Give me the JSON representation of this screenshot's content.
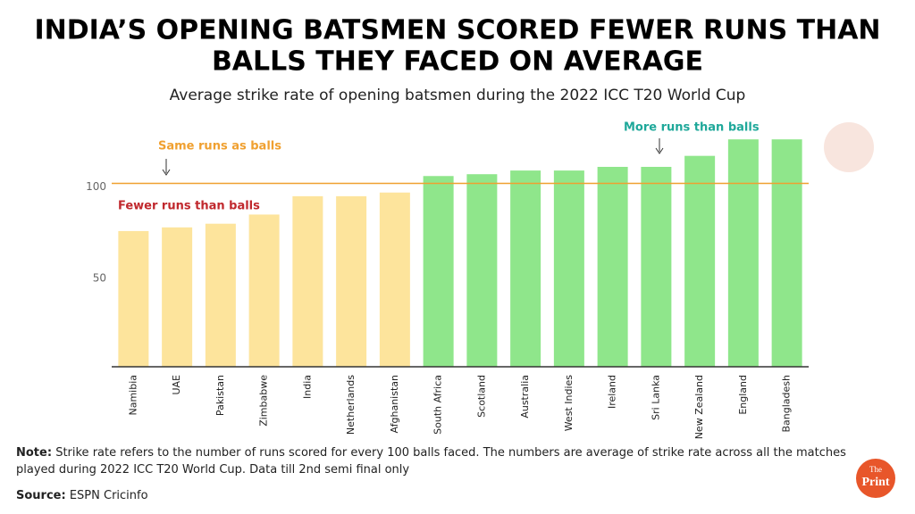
{
  "chart_data": {
    "type": "bar",
    "title": [
      "INDIA’S OPENING BATSMEN SCORED FEWER RUNS THAN",
      "BALLS THEY FACED ON AVERAGE"
    ],
    "subtitle": "Average strike rate of opening batsmen during the 2022 ICC T20 World Cup",
    "categories": [
      "Namibia",
      "UAE",
      "Pakistan",
      "Zimbabwe",
      "India",
      "Netherlands",
      "Afghanistan",
      "South Africa",
      "Scotland",
      "Australia",
      "West Indies",
      "Ireland",
      "Sri Lanka",
      "New Zealand",
      "England",
      "Bangladesh"
    ],
    "values": [
      74,
      76,
      78,
      83,
      93,
      93,
      95,
      104,
      105,
      107,
      107,
      109,
      109,
      115,
      124,
      124
    ],
    "colors": [
      "#fde49c",
      "#fde49c",
      "#fde49c",
      "#fde49c",
      "#fde49c",
      "#fde49c",
      "#fde49c",
      "#8fe68b",
      "#8fe68b",
      "#8fe68b",
      "#8fe68b",
      "#8fe68b",
      "#8fe68b",
      "#8fe68b",
      "#8fe68b",
      "#8fe68b"
    ],
    "ylim": [
      0,
      127
    ],
    "yticks": [
      50,
      100
    ],
    "reference_line": {
      "value": 100,
      "label": "Same runs as balls",
      "color": "#f0a030"
    },
    "annotations": [
      {
        "text": "Fewer runs than balls",
        "color": "#c0282d"
      },
      {
        "text": "More runs than balls",
        "color": "#1fa89a"
      }
    ]
  },
  "note_label": "Note:",
  "note": "Strike rate refers to the number of runs scored for every 100 balls faced. The numbers are average of strike rate across all the matches played during 2022 ICC T20 World Cup. Data till 2nd semi final only",
  "source_label": "Source:",
  "source": "ESPN Cricinfo",
  "logo": [
    "The",
    "Print"
  ]
}
